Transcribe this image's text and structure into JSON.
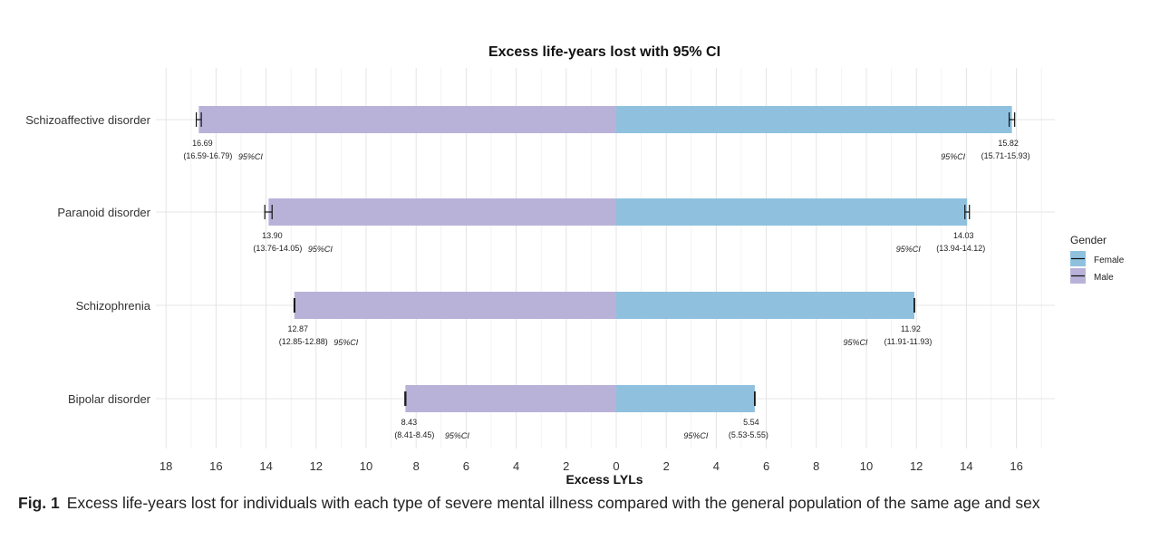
{
  "chart_data": {
    "type": "bar",
    "orientation": "horizontal-diverging",
    "title": "Excess life-years lost with 95% CI",
    "xlabel": "Excess LYLs",
    "ylabel": "",
    "categories": [
      "Schizoaffective disorder",
      "Paranoid disorder",
      "Schizophrenia",
      "Bipolar disorder"
    ],
    "series": [
      {
        "name": "Female",
        "color": "#8fc1df",
        "side": "right",
        "values": [
          15.82,
          14.03,
          11.92,
          5.54
        ],
        "value_labels": [
          "15.82",
          "14.03",
          "11.92",
          "5.54"
        ],
        "ci_low": [
          15.71,
          13.94,
          11.91,
          5.53
        ],
        "ci_high": [
          15.93,
          14.12,
          11.93,
          5.55
        ],
        "ci_labels": [
          "(15.71-15.93)",
          "(13.94-14.12)",
          "(11.91-11.93)",
          "(5.53-5.55)"
        ]
      },
      {
        "name": "Male",
        "color": "#b9b2d8",
        "side": "left",
        "values": [
          16.69,
          13.9,
          12.87,
          8.43
        ],
        "value_labels": [
          "16.69",
          "13.90",
          "12.87",
          "8.43"
        ],
        "ci_low": [
          16.59,
          13.76,
          12.85,
          8.41
        ],
        "ci_high": [
          16.79,
          14.05,
          12.88,
          8.45
        ],
        "ci_labels": [
          "(16.59-16.79)",
          "(13.76-14.05)",
          "(12.85-12.88)",
          "(8.41-8.45)"
        ]
      }
    ],
    "ci_tag": "95%CI",
    "xlim": [
      -18,
      17
    ],
    "x_ticks": [
      -18,
      -16,
      -14,
      -12,
      -10,
      -8,
      -6,
      -4,
      -2,
      0,
      2,
      4,
      6,
      8,
      10,
      12,
      14,
      16
    ],
    "x_tick_labels": [
      "18",
      "16",
      "14",
      "12",
      "10",
      "8",
      "6",
      "4",
      "2",
      "0",
      "2",
      "4",
      "6",
      "8",
      "10",
      "12",
      "14",
      "16"
    ],
    "grid": true,
    "legend": {
      "title": "Gender",
      "position": "right",
      "items": [
        "Female",
        "Male"
      ]
    }
  },
  "caption": {
    "label": "Fig. 1",
    "text": "Excess life-years lost for individuals with each type of severe mental illness compared with the general population of the same age and sex"
  }
}
